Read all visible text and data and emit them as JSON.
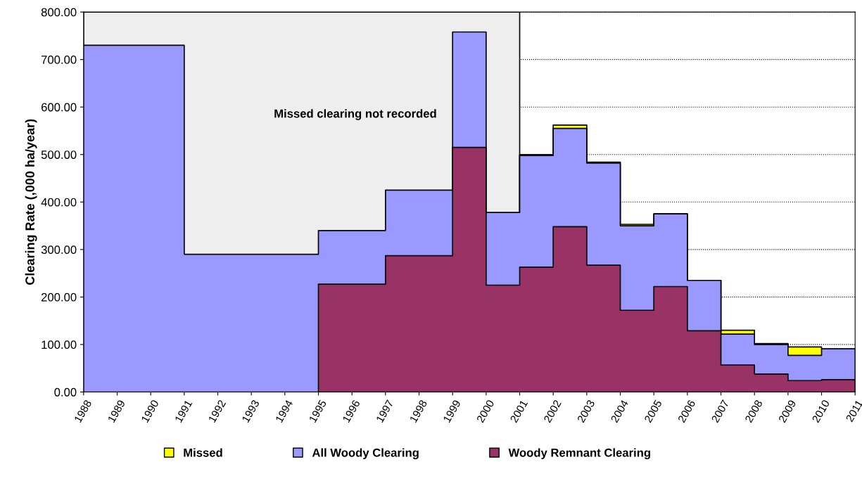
{
  "chart_data": {
    "type": "area",
    "ylabel": "Clearing Rate (,000 ha/year)",
    "x": [
      1988,
      1989,
      1990,
      1991,
      1992,
      1993,
      1994,
      1995,
      1996,
      1997,
      1998,
      1999,
      2000,
      2001,
      2002,
      2003,
      2004,
      2005,
      2006,
      2007,
      2008,
      2009,
      2010,
      2011
    ],
    "series": [
      {
        "name": "Missed",
        "color": "#ffff00",
        "values": [
          null,
          null,
          null,
          null,
          null,
          null,
          null,
          null,
          null,
          null,
          null,
          null,
          null,
          500,
          562,
          484,
          353,
          375,
          235,
          130,
          102,
          95,
          91,
          91
        ]
      },
      {
        "name": "All Woody Clearing",
        "color": "#9999ff",
        "values": [
          730,
          730,
          730,
          290,
          290,
          290,
          290,
          340,
          340,
          425,
          425,
          758,
          378,
          498,
          555,
          482,
          350,
          375,
          235,
          122,
          100,
          77,
          91,
          91
        ]
      },
      {
        "name": "Woody Remnant Clearing",
        "color": "#993366",
        "values": [
          null,
          null,
          null,
          null,
          null,
          null,
          null,
          227,
          227,
          287,
          287,
          515,
          225,
          263,
          348,
          267,
          172,
          222,
          129,
          57,
          38,
          24,
          26,
          26
        ]
      }
    ],
    "xlim": [
      1988,
      2011
    ],
    "xticks": [
      1988,
      1989,
      1990,
      1991,
      1992,
      1993,
      1994,
      1995,
      1996,
      1997,
      1998,
      1999,
      2000,
      2001,
      2002,
      2003,
      2004,
      2005,
      2006,
      2007,
      2008,
      2009,
      2010,
      2011
    ],
    "ylim": [
      0,
      800
    ],
    "yticks": [
      {
        "value": 0,
        "label": "0.00"
      },
      {
        "value": 100,
        "label": "100.00"
      },
      {
        "value": 200,
        "label": "200.00"
      },
      {
        "value": 300,
        "label": "300.00"
      },
      {
        "value": 400,
        "label": "400.00"
      },
      {
        "value": 500,
        "label": "500.00"
      },
      {
        "value": 600,
        "label": "600.00"
      },
      {
        "value": 700,
        "label": "700.00"
      },
      {
        "value": 800,
        "label": "800.00"
      }
    ],
    "bands": [
      {
        "axis": "x",
        "from": 1988,
        "to": 2001,
        "label": "Missed clearing not recorded",
        "color": "#eeeeee"
      }
    ],
    "grid": "y",
    "legend": "bottom"
  }
}
